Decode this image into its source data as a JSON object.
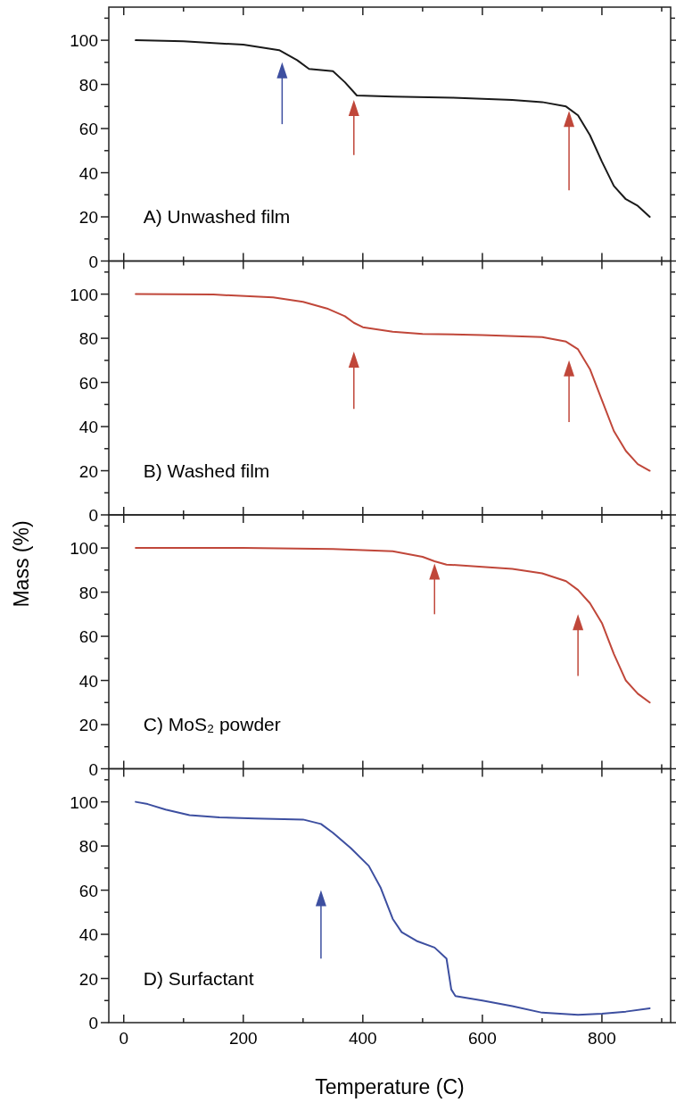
{
  "chart_data": [
    {
      "type": "line",
      "title": "A) Unwashed film",
      "xlim": [
        -25,
        915
      ],
      "ylim": [
        0,
        115
      ],
      "tick_labels": "y",
      "xticks": [
        0,
        {
          "value": 100,
          "label": null
        },
        200,
        {
          "value": 300,
          "label": null
        },
        400,
        {
          "value": 500,
          "label": null
        },
        600,
        {
          "value": 700,
          "label": null
        },
        800,
        {
          "value": 900,
          "label": null
        }
      ],
      "yticks": [
        0,
        {
          "value": 10,
          "label": null
        },
        20,
        {
          "value": 30,
          "label": null
        },
        40,
        {
          "value": 50,
          "label": null
        },
        60,
        {
          "value": 70,
          "label": null
        },
        80,
        {
          "value": 90,
          "label": null
        },
        100,
        {
          "value": 110,
          "label": null
        }
      ],
      "series": [
        {
          "color": "#1a1a1a",
          "x": [
            20,
            100,
            200,
            260,
            290,
            310,
            350,
            370,
            390,
            450,
            550,
            650,
            700,
            740,
            760,
            780,
            800,
            820,
            840,
            860,
            880
          ],
          "values": [
            100,
            99.5,
            98,
            95.5,
            91,
            87,
            86,
            81,
            75,
            74.5,
            74,
            73,
            72,
            70,
            66,
            57,
            45,
            34,
            28,
            25,
            20
          ]
        }
      ]
    },
    {
      "type": "line",
      "title": "B) Washed film",
      "xlim": [
        -25,
        915
      ],
      "ylim": [
        0,
        115
      ],
      "tick_labels": "y",
      "xticks": [
        0,
        {
          "value": 100,
          "label": null
        },
        200,
        {
          "value": 300,
          "label": null
        },
        400,
        {
          "value": 500,
          "label": null
        },
        600,
        {
          "value": 700,
          "label": null
        },
        800,
        {
          "value": 900,
          "label": null
        }
      ],
      "yticks": [
        0,
        {
          "value": 10,
          "label": null
        },
        20,
        {
          "value": 30,
          "label": null
        },
        40,
        {
          "value": 50,
          "label": null
        },
        60,
        {
          "value": 70,
          "label": null
        },
        80,
        {
          "value": 90,
          "label": null
        },
        100,
        {
          "value": 110,
          "label": null
        }
      ],
      "series": [
        {
          "color": "#c0473a",
          "x": [
            20,
            150,
            250,
            300,
            340,
            370,
            385,
            400,
            450,
            500,
            600,
            700,
            740,
            760,
            780,
            800,
            820,
            840,
            860,
            880
          ],
          "values": [
            100,
            99.8,
            98.5,
            96.5,
            93.5,
            90,
            87,
            85,
            83,
            82,
            81.5,
            80.5,
            78.5,
            75,
            66,
            52,
            38,
            29,
            23,
            20
          ]
        }
      ]
    },
    {
      "type": "line",
      "title": "C) MoS₂ powder",
      "ylabel": "Mass (%)",
      "xlim": [
        -25,
        915
      ],
      "ylim": [
        0,
        115
      ],
      "tick_labels": "y",
      "xticks": [
        0,
        {
          "value": 100,
          "label": null
        },
        200,
        {
          "value": 300,
          "label": null
        },
        400,
        {
          "value": 500,
          "label": null
        },
        600,
        {
          "value": 700,
          "label": null
        },
        800,
        {
          "value": 900,
          "label": null
        }
      ],
      "yticks": [
        0,
        {
          "value": 10,
          "label": null
        },
        20,
        {
          "value": 30,
          "label": null
        },
        40,
        {
          "value": 50,
          "label": null
        },
        60,
        {
          "value": 70,
          "label": null
        },
        80,
        {
          "value": 90,
          "label": null
        },
        100,
        {
          "value": 110,
          "label": null
        }
      ],
      "series": [
        {
          "color": "#c0473a",
          "x": [
            20,
            200,
            350,
            450,
            500,
            520,
            540,
            600,
            650,
            700,
            740,
            760,
            780,
            800,
            820,
            840,
            860,
            880
          ],
          "values": [
            100,
            100,
            99.5,
            98.5,
            96,
            94,
            92.5,
            91.5,
            90.5,
            88.5,
            85,
            81,
            75,
            66,
            52,
            40,
            34,
            30
          ]
        }
      ]
    },
    {
      "type": "line",
      "title": "D) Surfactant",
      "xlabel": "Temperature (C)",
      "xlim": [
        -25,
        915
      ],
      "ylim": [
        0,
        115
      ],
      "xticks": [
        0,
        {
          "value": 100,
          "label": null
        },
        200,
        {
          "value": 300,
          "label": null
        },
        400,
        {
          "value": 500,
          "label": null
        },
        600,
        {
          "value": 700,
          "label": null
        },
        800,
        {
          "value": 900,
          "label": null
        }
      ],
      "yticks": [
        0,
        {
          "value": 10,
          "label": null
        },
        20,
        {
          "value": 30,
          "label": null
        },
        40,
        {
          "value": 50,
          "label": null
        },
        60,
        {
          "value": 70,
          "label": null
        },
        80,
        {
          "value": 90,
          "label": null
        },
        100,
        {
          "value": 110,
          "label": null
        }
      ],
      "series": [
        {
          "color": "#3d4fa0",
          "x": [
            20,
            40,
            70,
            110,
            160,
            220,
            300,
            330,
            350,
            380,
            410,
            430,
            450,
            465,
            490,
            520,
            540,
            548,
            555,
            600,
            650,
            700,
            760,
            800,
            840,
            880
          ],
          "values": [
            100,
            99,
            96.5,
            94,
            93,
            92.5,
            92,
            90,
            86,
            79,
            71,
            61,
            47,
            41,
            37,
            34,
            29,
            15,
            12,
            10,
            7.5,
            4.5,
            3.5,
            4,
            5,
            6.5
          ]
        }
      ]
    }
  ]
}
